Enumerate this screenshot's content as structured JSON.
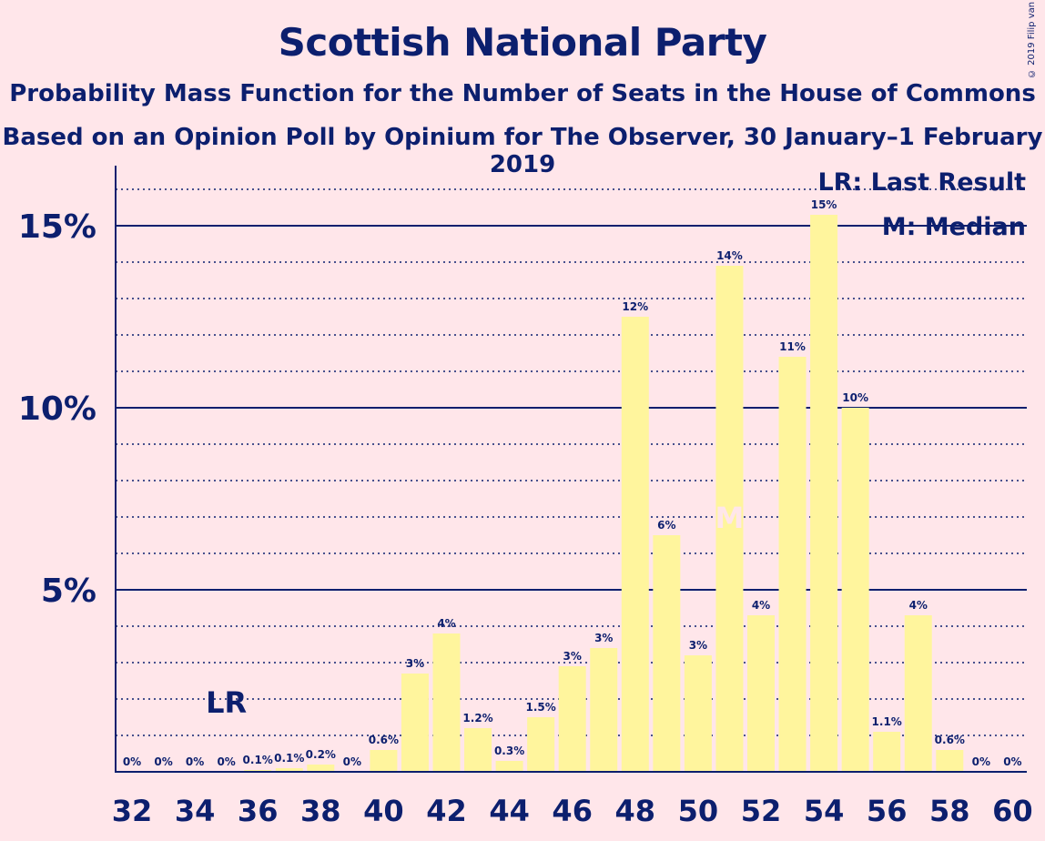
{
  "chart_data": {
    "type": "bar",
    "title": "Scottish National Party",
    "subtitle": "Probability Mass Function for the Number of Seats in the House of Commons",
    "subtitle2": "Based on an Opinion Poll by Opinium for The Observer, 30 January–1 February 2019",
    "credit": "© 2019 Filip van Laenen",
    "x": [
      32,
      33,
      34,
      35,
      36,
      37,
      38,
      39,
      40,
      41,
      42,
      43,
      44,
      45,
      46,
      47,
      48,
      49,
      50,
      51,
      52,
      53,
      54,
      55,
      56,
      57,
      58,
      59,
      60
    ],
    "values": [
      0,
      0,
      0,
      0,
      0.05,
      0.1,
      0.2,
      0,
      0.6,
      2.7,
      3.8,
      1.2,
      0.3,
      1.5,
      2.9,
      3.4,
      12.5,
      6.5,
      3.2,
      13.9,
      4.3,
      11.4,
      15.3,
      10.0,
      1.1,
      4.3,
      0.6,
      0,
      0
    ],
    "data_labels": [
      "0%",
      "0%",
      "0%",
      "0%",
      "0.1%",
      "0.1%",
      "0.2%",
      "0%",
      "0.6%",
      "3%",
      "4%",
      "1.2%",
      "0.3%",
      "1.5%",
      "3%",
      "3%",
      "12%",
      "6%",
      "3%",
      "14%",
      "4%",
      "11%",
      "15%",
      "10%",
      "1.1%",
      "4%",
      "0.6%",
      "0%",
      "0%"
    ],
    "x_tick_labels": [
      "32",
      "34",
      "36",
      "38",
      "40",
      "42",
      "44",
      "46",
      "48",
      "50",
      "52",
      "54",
      "56",
      "58",
      "60"
    ],
    "y_tick_labels": [
      "5%",
      "10%",
      "15%"
    ],
    "ylim": [
      0,
      16.5
    ],
    "last_result": 35,
    "last_result_label": "LR",
    "median": 51,
    "median_label": "M",
    "legend": [
      "LR: Last Result",
      "M: Median"
    ],
    "colors": {
      "bar": "#fff59d",
      "text": "#0c1f6e",
      "background": "#ffe6ea"
    }
  }
}
